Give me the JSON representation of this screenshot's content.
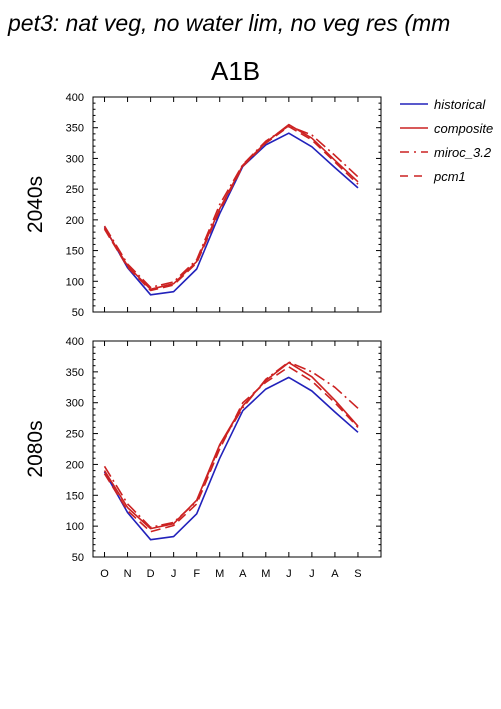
{
  "figure_title": "pet3: nat veg, no water lim, no veg res (mm",
  "scenario_title": "A1B",
  "chart_data": [
    {
      "type": "line",
      "row_label": "2040s",
      "categories": [
        "O",
        "N",
        "D",
        "J",
        "F",
        "M",
        "A",
        "M",
        "J",
        "J",
        "A",
        "S"
      ],
      "ylim": [
        50,
        400
      ],
      "yticks": [
        50,
        100,
        150,
        200,
        250,
        300,
        350,
        400
      ],
      "legend_position": "right",
      "series": [
        {
          "name": "historical",
          "color": "#2222bb",
          "dash": "solid",
          "values": [
            188,
            122,
            78,
            83,
            120,
            210,
            287,
            322,
            341,
            319,
            285,
            252
          ]
        },
        {
          "name": "composite",
          "color": "#cc2222",
          "dash": "solid",
          "values": [
            187,
            125,
            87,
            96,
            132,
            218,
            289,
            326,
            355,
            333,
            297,
            262
          ]
        },
        {
          "name": "miroc_3.2",
          "color": "#cc2222",
          "dash": "dashdot",
          "values": [
            190,
            128,
            90,
            99,
            135,
            225,
            290,
            328,
            353,
            338,
            305,
            270
          ]
        },
        {
          "name": "pcm1",
          "color": "#cc2222",
          "dash": "dash",
          "values": [
            185,
            123,
            85,
            94,
            130,
            215,
            287,
            325,
            352,
            330,
            294,
            258
          ]
        }
      ]
    },
    {
      "type": "line",
      "row_label": "2080s",
      "categories": [
        "O",
        "N",
        "D",
        "J",
        "F",
        "M",
        "A",
        "M",
        "J",
        "J",
        "A",
        "S"
      ],
      "ylim": [
        50,
        400
      ],
      "yticks": [
        50,
        100,
        150,
        200,
        250,
        300,
        350,
        400
      ],
      "series": [
        {
          "name": "historical",
          "color": "#2222bb",
          "dash": "solid",
          "values": [
            188,
            122,
            78,
            83,
            120,
            210,
            287,
            322,
            341,
            319,
            285,
            252
          ]
        },
        {
          "name": "composite",
          "color": "#cc2222",
          "dash": "solid",
          "values": [
            190,
            130,
            96,
            104,
            142,
            232,
            295,
            336,
            365,
            342,
            304,
            262
          ]
        },
        {
          "name": "miroc_3.2",
          "color": "#cc2222",
          "dash": "dashdot",
          "values": [
            197,
            136,
            98,
            106,
            140,
            230,
            292,
            338,
            366,
            350,
            325,
            291
          ]
        },
        {
          "name": "pcm1",
          "color": "#cc2222",
          "dash": "dash",
          "values": [
            185,
            125,
            91,
            101,
            136,
            225,
            300,
            333,
            358,
            335,
            300,
            260
          ]
        }
      ]
    }
  ]
}
